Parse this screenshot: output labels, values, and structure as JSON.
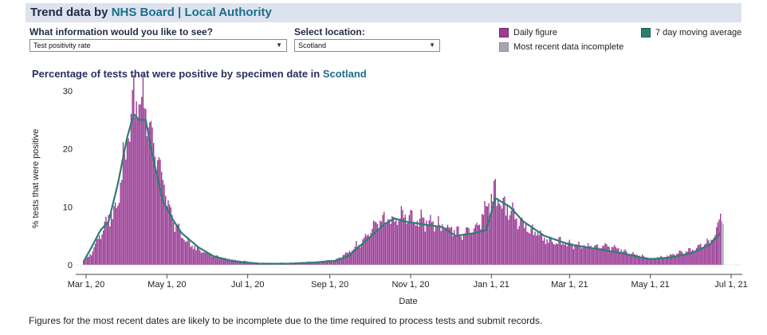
{
  "header": {
    "prefix": "Trend data by ",
    "nhs_board": "NHS Board",
    "separator": " | ",
    "local_authority": "Local Authority"
  },
  "controls": {
    "info_label": "What information would you like to see?",
    "info_value": "Test positivity rate",
    "location_label": "Select location:",
    "location_value": "Scotland"
  },
  "legend": {
    "daily": "Daily figure",
    "incomplete": "Most recent data incomplete",
    "moving_avg": "7 day moving average"
  },
  "colors": {
    "daily": "#9b3d96",
    "incomplete": "#a7a5b5",
    "moving_avg": "#2e7d73",
    "header_bg": "#dde3ee"
  },
  "chart_title": {
    "prefix": "Percentage of tests that were positive by specimen date in ",
    "location": "Scotland"
  },
  "footnote": "Figures for the most recent dates are likely to be incomplete due to the time required to process tests and submit records.",
  "chart_data": {
    "type": "bar",
    "title": "Percentage of tests that were positive by specimen date in Scotland",
    "xlabel": "Date",
    "ylabel": "% tests that were positive",
    "ylim": [
      0,
      30
    ],
    "yticks": [
      "0",
      "10",
      "20",
      "30"
    ],
    "xticks": [
      {
        "date": "2020-03-01",
        "label": "Mar 1, 20"
      },
      {
        "date": "2020-05-01",
        "label": "May 1, 20"
      },
      {
        "date": "2020-07-01",
        "label": "Jul 1, 20"
      },
      {
        "date": "2020-09-01",
        "label": "Sep 1, 20"
      },
      {
        "date": "2020-11-01",
        "label": "Nov 1, 20"
      },
      {
        "date": "2021-01-01",
        "label": "Jan 1, 21"
      },
      {
        "date": "2021-03-01",
        "label": "Mar 1, 21"
      },
      {
        "date": "2021-05-01",
        "label": "May 1, 21"
      },
      {
        "date": "2021-07-01",
        "label": "Jul 1, 21"
      }
    ],
    "x_range": [
      "2020-02-25",
      "2021-07-15"
    ],
    "grid": false,
    "daily_anchors": [
      [
        "2020-02-28",
        0.5
      ],
      [
        "2020-03-05",
        2
      ],
      [
        "2020-03-12",
        5
      ],
      [
        "2020-03-18",
        8
      ],
      [
        "2020-03-25",
        10
      ],
      [
        "2020-04-01",
        22
      ],
      [
        "2020-04-06",
        26
      ],
      [
        "2020-04-10",
        27
      ],
      [
        "2020-04-15",
        25
      ],
      [
        "2020-04-20",
        22
      ],
      [
        "2020-04-28",
        14
      ],
      [
        "2020-05-05",
        8
      ],
      [
        "2020-05-15",
        4
      ],
      [
        "2020-05-25",
        2.5
      ],
      [
        "2020-06-05",
        1.5
      ],
      [
        "2020-06-20",
        0.8
      ],
      [
        "2020-07-10",
        0.3
      ],
      [
        "2020-08-01",
        0.3
      ],
      [
        "2020-08-20",
        0.5
      ],
      [
        "2020-09-05",
        0.8
      ],
      [
        "2020-09-15",
        2
      ],
      [
        "2020-09-25",
        4
      ],
      [
        "2020-10-05",
        6.5
      ],
      [
        "2020-10-15",
        8
      ],
      [
        "2020-10-25",
        8
      ],
      [
        "2020-11-05",
        7.5
      ],
      [
        "2020-11-20",
        7
      ],
      [
        "2020-12-01",
        6
      ],
      [
        "2020-12-10",
        5.5
      ],
      [
        "2020-12-20",
        6
      ],
      [
        "2020-12-27",
        9
      ],
      [
        "2021-01-03",
        12
      ],
      [
        "2021-01-10",
        10
      ],
      [
        "2021-01-20",
        8
      ],
      [
        "2021-02-01",
        5.5
      ],
      [
        "2021-02-15",
        4
      ],
      [
        "2021-03-01",
        3.5
      ],
      [
        "2021-03-15",
        3
      ],
      [
        "2021-04-01",
        3
      ],
      [
        "2021-04-15",
        2
      ],
      [
        "2021-05-01",
        1
      ],
      [
        "2021-05-15",
        1.5
      ],
      [
        "2021-06-01",
        2.5
      ],
      [
        "2021-06-15",
        4
      ],
      [
        "2021-06-20",
        5.5
      ],
      [
        "2021-06-23",
        8
      ]
    ],
    "moving_average": [
      [
        "2020-02-28",
        0.5
      ],
      [
        "2020-03-05",
        3
      ],
      [
        "2020-03-12",
        6
      ],
      [
        "2020-03-18",
        7.5
      ],
      [
        "2020-03-25",
        14
      ],
      [
        "2020-04-01",
        22
      ],
      [
        "2020-04-06",
        26
      ],
      [
        "2020-04-10",
        25
      ],
      [
        "2020-04-15",
        25
      ],
      [
        "2020-04-20",
        19
      ],
      [
        "2020-04-28",
        11
      ],
      [
        "2020-05-05",
        8
      ],
      [
        "2020-05-12",
        5.5
      ],
      [
        "2020-05-25",
        3
      ],
      [
        "2020-06-05",
        1.5
      ],
      [
        "2020-06-20",
        0.6
      ],
      [
        "2020-07-10",
        0.2
      ],
      [
        "2020-08-01",
        0.2
      ],
      [
        "2020-08-20",
        0.4
      ],
      [
        "2020-09-05",
        0.7
      ],
      [
        "2020-09-15",
        1.5
      ],
      [
        "2020-09-25",
        3.5
      ],
      [
        "2020-10-05",
        5.5
      ],
      [
        "2020-10-12",
        7
      ],
      [
        "2020-10-20",
        8
      ],
      [
        "2020-10-27",
        7.5
      ],
      [
        "2020-11-10",
        7
      ],
      [
        "2020-11-25",
        6.5
      ],
      [
        "2020-12-05",
        5
      ],
      [
        "2020-12-20",
        5.5
      ],
      [
        "2020-12-28",
        6
      ],
      [
        "2021-01-04",
        11.5
      ],
      [
        "2021-01-15",
        10
      ],
      [
        "2021-01-25",
        7.5
      ],
      [
        "2021-02-10",
        5
      ],
      [
        "2021-03-01",
        3.5
      ],
      [
        "2021-03-20",
        2.8
      ],
      [
        "2021-04-10",
        2
      ],
      [
        "2021-04-25",
        1.2
      ],
      [
        "2021-05-01",
        1
      ],
      [
        "2021-05-15",
        1.2
      ],
      [
        "2021-06-01",
        2
      ],
      [
        "2021-06-15",
        3.5
      ],
      [
        "2021-06-23",
        5.5
      ]
    ],
    "incomplete_from": "2021-06-24",
    "incomplete_values": [
      7.5,
      7
    ]
  }
}
